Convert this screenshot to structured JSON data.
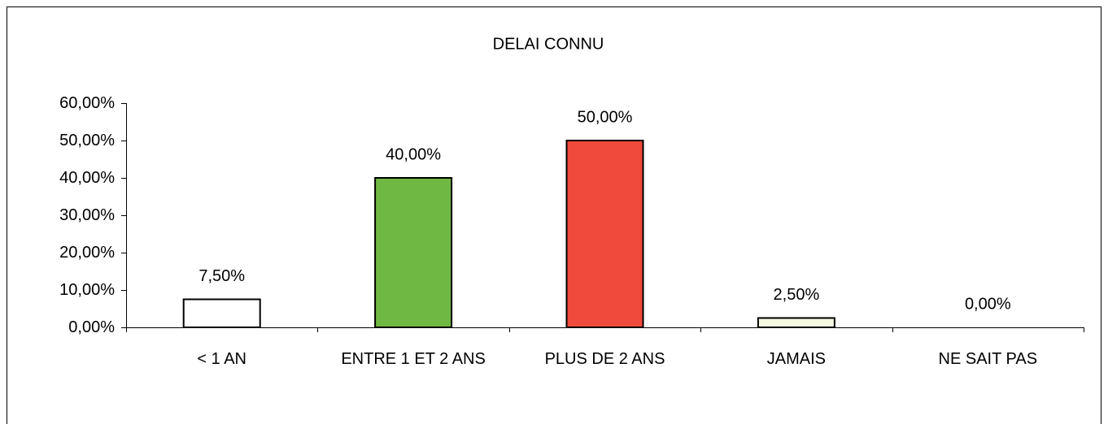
{
  "chart_data": {
    "type": "bar",
    "title": "DELAI CONNU",
    "categories": [
      "< 1 AN",
      "ENTRE 1 ET 2 ANS",
      "PLUS DE 2 ANS",
      "JAMAIS",
      "NE SAIT PAS"
    ],
    "values": [
      7.5,
      40,
      50,
      2.5,
      0
    ],
    "value_labels": [
      "7,50%",
      "40,00%",
      "50,00%",
      "2,50%",
      "0,00%"
    ],
    "colors": [
      "#ffffff",
      "#70b844",
      "#ef4a3c",
      "#f5f8e1",
      "#ffffff"
    ],
    "ylim": [
      0,
      60
    ],
    "yticks": [
      {
        "value": 0,
        "label": "0,00%"
      },
      {
        "value": 10,
        "label": "10,00%"
      },
      {
        "value": 20,
        "label": "20,00%"
      },
      {
        "value": 30,
        "label": "30,00%"
      },
      {
        "value": 40,
        "label": "40,00%"
      },
      {
        "value": 50,
        "label": "50,00%"
      },
      {
        "value": 60,
        "label": "60,00%"
      }
    ],
    "grid": false
  }
}
